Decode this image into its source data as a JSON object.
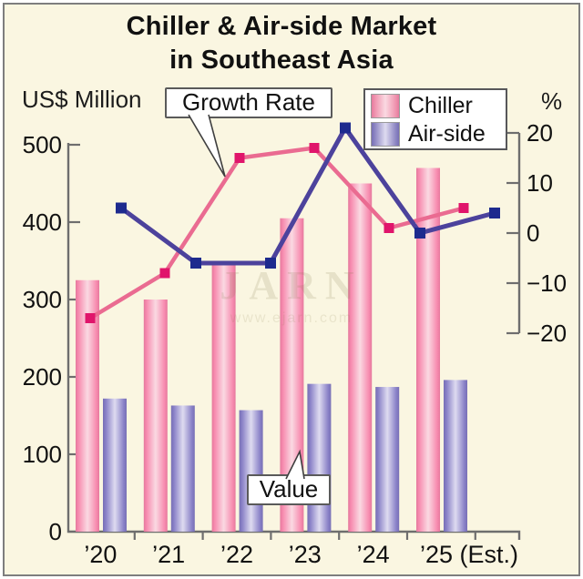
{
  "title": {
    "line1": "Chiller & Air-side Market",
    "line2": "in Southeast Asia"
  },
  "axes": {
    "left_label": "US$ Million",
    "right_label": "%",
    "left_ticks": [
      0,
      100,
      200,
      300,
      400,
      500
    ],
    "right_ticks": [
      20,
      10,
      0,
      -10,
      -20
    ]
  },
  "annotations": {
    "growth_rate_label": "Growth Rate",
    "value_label": "Value"
  },
  "legend": [
    {
      "label": "Chiller",
      "swatch": "chiller"
    },
    {
      "label": "Air-side",
      "swatch": "airside"
    }
  ],
  "watermark": {
    "line1": "JARN",
    "line2": "www.ejarn.com"
  },
  "chart_data": {
    "type": "bar",
    "subtype": "grouped bars with overlaid growth-rate lines",
    "title": "Chiller & Air-side Market in Southeast Asia",
    "categories": [
      "’20",
      "’21",
      "’22",
      "’23",
      "’24",
      "’25 (Est.)"
    ],
    "bar_series": [
      {
        "name": "Chiller",
        "axis": "left",
        "unit": "US$ Million",
        "values": [
          325,
          300,
          345,
          405,
          450,
          470
        ]
      },
      {
        "name": "Air-side",
        "axis": "left",
        "unit": "US$ Million",
        "values": [
          172,
          163,
          157,
          191,
          187,
          196
        ]
      }
    ],
    "line_series": [
      {
        "name": "Chiller growth rate",
        "axis": "right",
        "unit": "%",
        "values": [
          -17,
          -8,
          15,
          17,
          1,
          5
        ]
      },
      {
        "name": "Air-side growth rate",
        "axis": "right",
        "unit": "%",
        "values": [
          5,
          -6,
          -6,
          21,
          0,
          4
        ]
      }
    ],
    "left_axis": {
      "label": "US$ Million",
      "min": 0,
      "max": 500,
      "step": 100
    },
    "right_axis": {
      "label": "%",
      "min": -20,
      "max": 20,
      "step": 10
    },
    "grid": false,
    "legend_position": "top-right"
  },
  "colors": {
    "background": "#faf6e1",
    "axis": "#6e6e6e",
    "chiller_bar_edge": "#e5799d",
    "chiller_bar_mid": "#fad9e2",
    "airside_bar_edge": "#776fb5",
    "airside_bar_mid": "#dedbf0",
    "chiller_line": "#ea6b91",
    "chiller_marker": "#e0156b",
    "airside_line": "#4c429c",
    "airside_marker": "#1d2a8e",
    "text": "#111111"
  }
}
